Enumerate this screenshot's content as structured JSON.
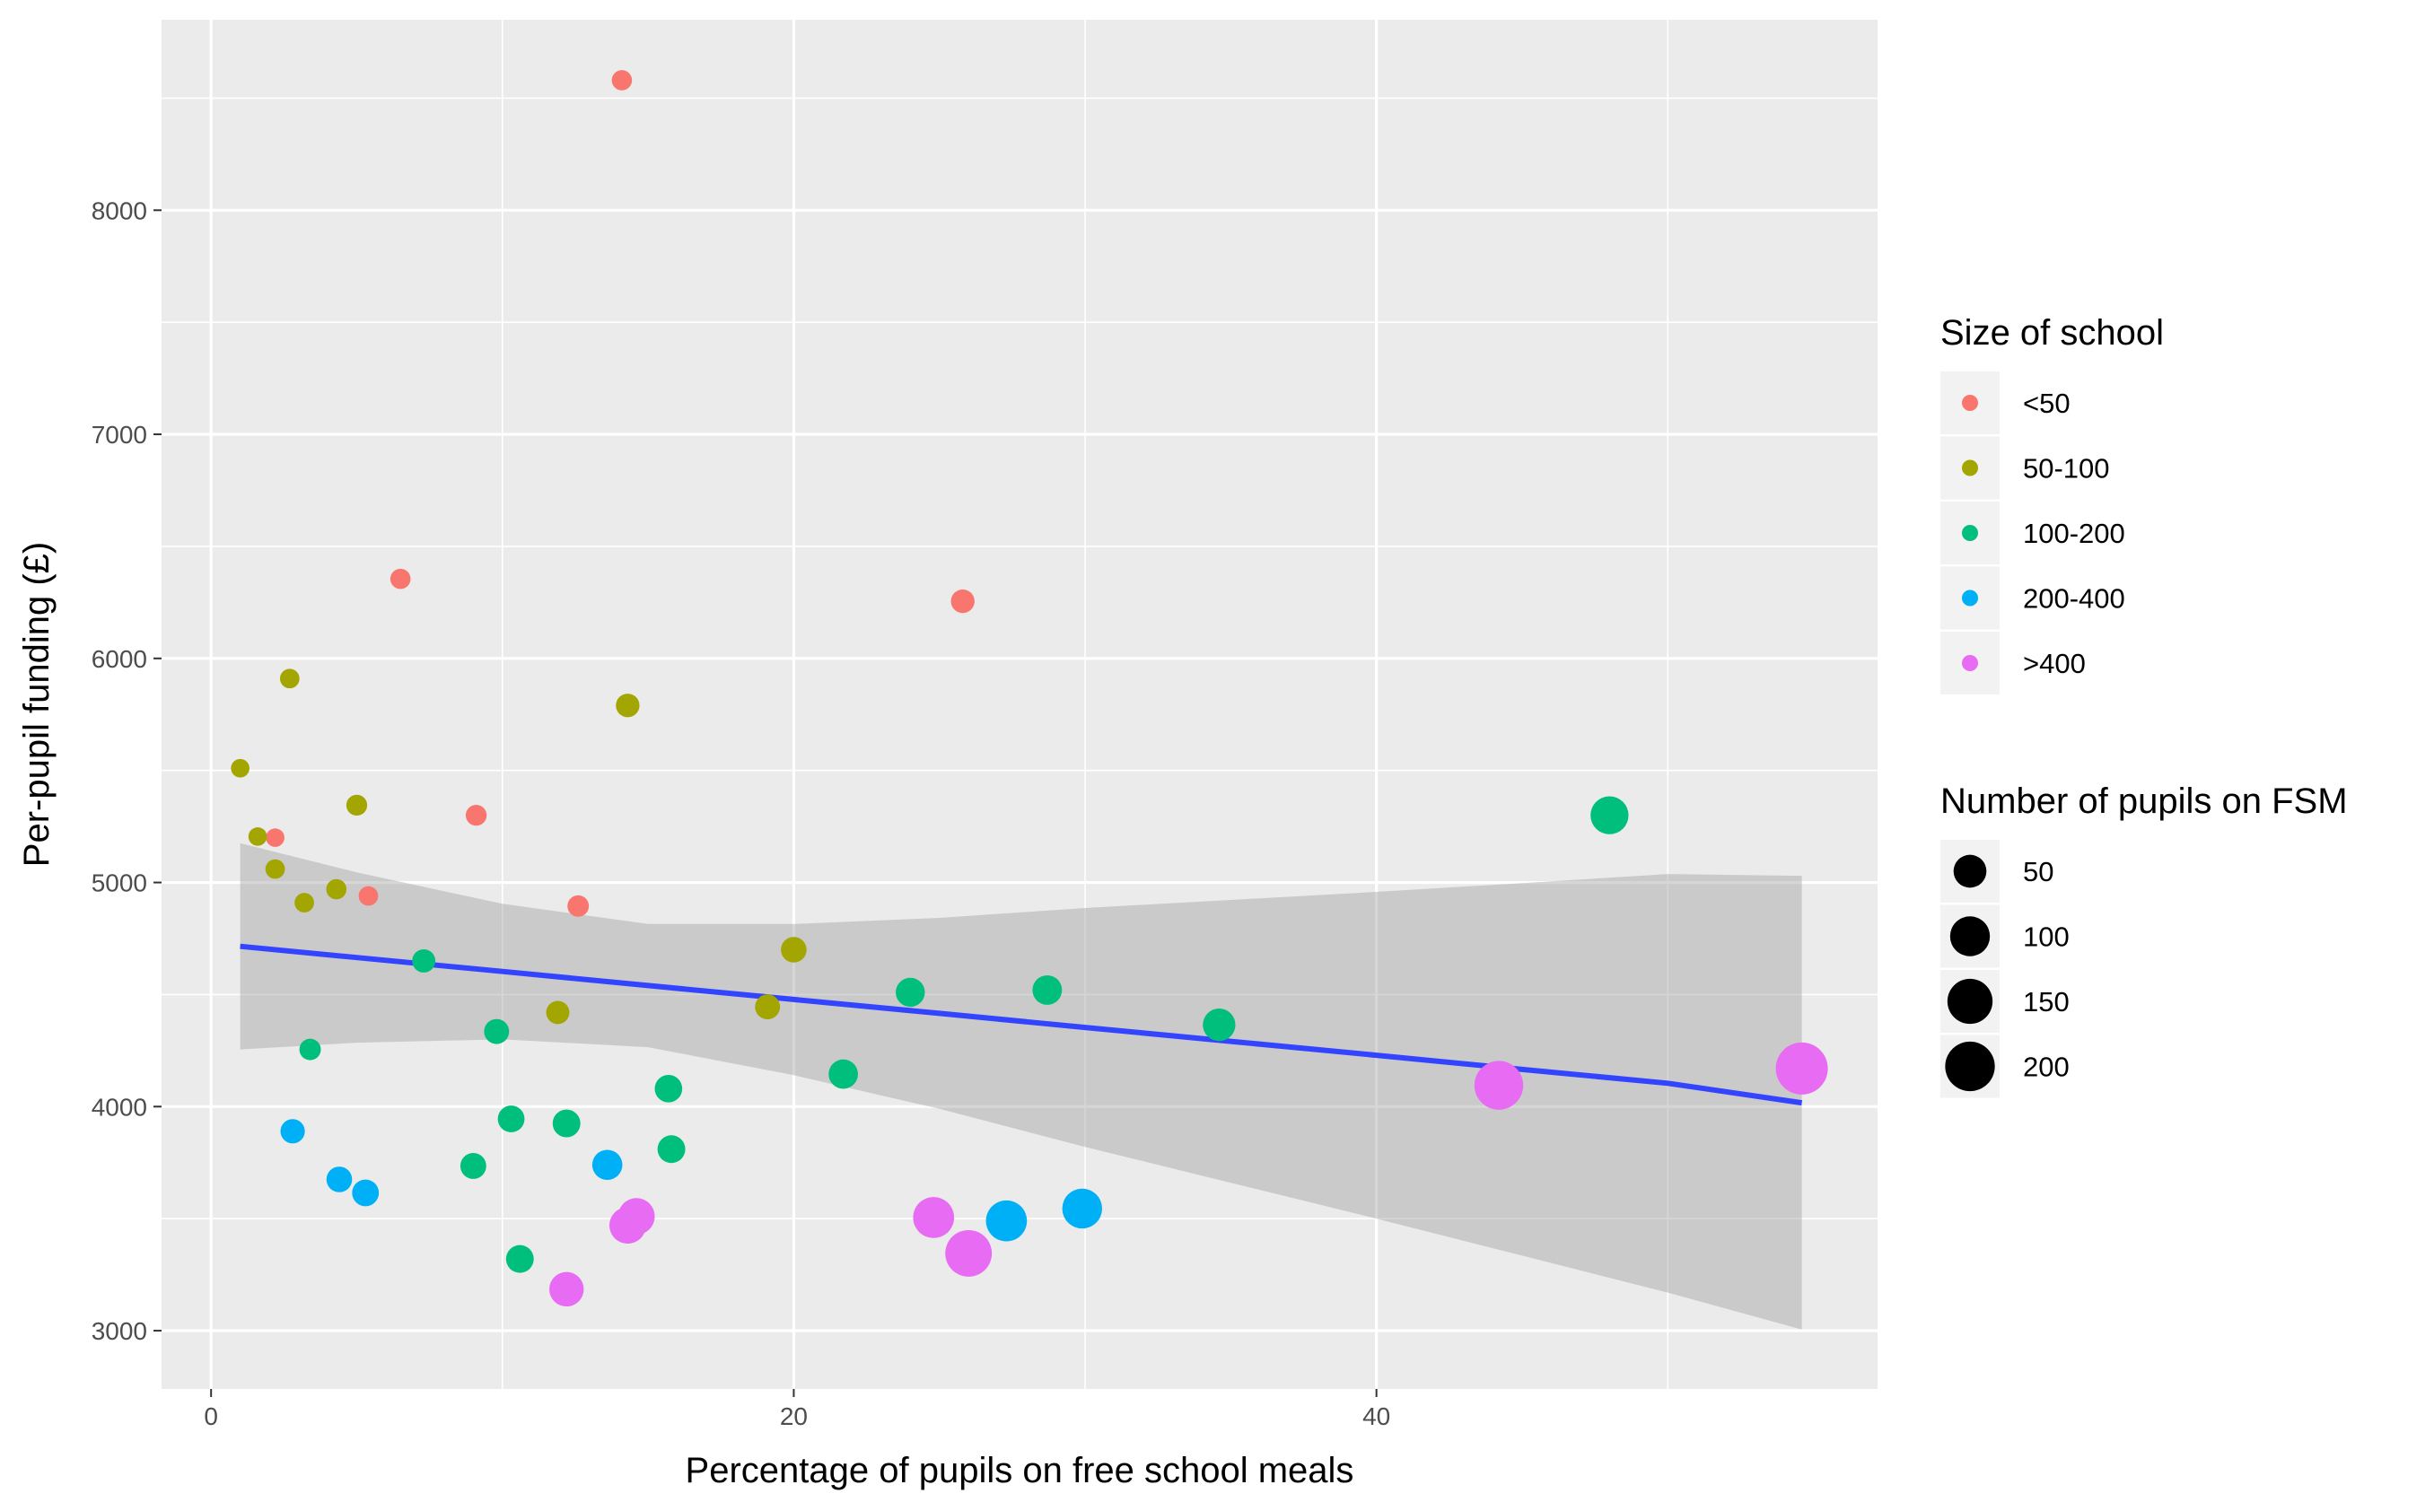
{
  "chart_data": {
    "type": "scatter",
    "xlabel": "Percentage of pupils on free school meals",
    "ylabel": "Per-pupil funding (£)",
    "xlim": [
      -1.7,
      57.2
    ],
    "ylim": [
      2740,
      8850
    ],
    "x_ticks": [
      0,
      20,
      40
    ],
    "y_ticks": [
      3000,
      4000,
      5000,
      6000,
      7000,
      8000
    ],
    "grid": true,
    "legend_position": "right",
    "colour_legend": {
      "title": "Size of school",
      "entries": [
        {
          "label": "<50",
          "color": "#F8766D"
        },
        {
          "label": "50-100",
          "color": "#A3A500"
        },
        {
          "label": "100-200",
          "color": "#00BF7D"
        },
        {
          "label": "200-400",
          "color": "#00B0F6"
        },
        {
          "label": ">400",
          "color": "#E76BF3"
        }
      ]
    },
    "size_legend": {
      "title": "Number of pupils on FSM",
      "entries": [
        {
          "label": "50",
          "value": 50
        },
        {
          "label": "100",
          "value": 100
        },
        {
          "label": "150",
          "value": 150
        },
        {
          "label": "200",
          "value": 200
        }
      ]
    },
    "points": [
      {
        "x": 14.1,
        "y": 8580,
        "group": "<50",
        "fsm": 3
      },
      {
        "x": 25.8,
        "y": 6255,
        "group": "<50",
        "fsm": 10
      },
      {
        "x": 6.5,
        "y": 6355,
        "group": "<50",
        "fsm": 3
      },
      {
        "x": 9.1,
        "y": 5300,
        "group": "<50",
        "fsm": 4
      },
      {
        "x": 2.2,
        "y": 5200,
        "group": "<50",
        "fsm": 1
      },
      {
        "x": 5.4,
        "y": 4940,
        "group": "<50",
        "fsm": 2
      },
      {
        "x": 12.6,
        "y": 4895,
        "group": "<50",
        "fsm": 5
      },
      {
        "x": 2.7,
        "y": 5910,
        "group": "50-100",
        "fsm": 2
      },
      {
        "x": 14.3,
        "y": 5790,
        "group": "50-100",
        "fsm": 10
      },
      {
        "x": 1.0,
        "y": 5510,
        "group": "50-100",
        "fsm": 1
      },
      {
        "x": 5.0,
        "y": 5345,
        "group": "50-100",
        "fsm": 4
      },
      {
        "x": 1.6,
        "y": 5205,
        "group": "50-100",
        "fsm": 1
      },
      {
        "x": 2.2,
        "y": 5060,
        "group": "50-100",
        "fsm": 2
      },
      {
        "x": 4.3,
        "y": 4970,
        "group": "50-100",
        "fsm": 3
      },
      {
        "x": 3.2,
        "y": 4910,
        "group": "50-100",
        "fsm": 2
      },
      {
        "x": 20.0,
        "y": 4700,
        "group": "50-100",
        "fsm": 16
      },
      {
        "x": 11.9,
        "y": 4420,
        "group": "50-100",
        "fsm": 9
      },
      {
        "x": 19.1,
        "y": 4445,
        "group": "50-100",
        "fsm": 14
      },
      {
        "x": 7.3,
        "y": 4650,
        "group": "100-200",
        "fsm": 9
      },
      {
        "x": 9.8,
        "y": 4335,
        "group": "100-200",
        "fsm": 14
      },
      {
        "x": 3.4,
        "y": 4255,
        "group": "100-200",
        "fsm": 5
      },
      {
        "x": 24.0,
        "y": 4510,
        "group": "100-200",
        "fsm": 30
      },
      {
        "x": 28.7,
        "y": 4520,
        "group": "100-200",
        "fsm": 32
      },
      {
        "x": 34.6,
        "y": 4365,
        "group": "100-200",
        "fsm": 48
      },
      {
        "x": 21.7,
        "y": 4145,
        "group": "100-200",
        "fsm": 31
      },
      {
        "x": 15.7,
        "y": 4080,
        "group": "100-200",
        "fsm": 23
      },
      {
        "x": 10.3,
        "y": 3945,
        "group": "100-200",
        "fsm": 20
      },
      {
        "x": 12.2,
        "y": 3925,
        "group": "100-200",
        "fsm": 24
      },
      {
        "x": 15.8,
        "y": 3810,
        "group": "100-200",
        "fsm": 24
      },
      {
        "x": 9.0,
        "y": 3735,
        "group": "100-200",
        "fsm": 17
      },
      {
        "x": 10.6,
        "y": 3320,
        "group": "100-200",
        "fsm": 24
      },
      {
        "x": 48.0,
        "y": 5300,
        "group": "100-200",
        "fsm": 85
      },
      {
        "x": 2.8,
        "y": 3890,
        "group": "200-400",
        "fsm": 12
      },
      {
        "x": 13.6,
        "y": 3740,
        "group": "200-400",
        "fsm": 35
      },
      {
        "x": 4.4,
        "y": 3675,
        "group": "200-400",
        "fsm": 16
      },
      {
        "x": 5.3,
        "y": 3615,
        "group": "200-400",
        "fsm": 20
      },
      {
        "x": 27.3,
        "y": 3490,
        "group": "200-400",
        "fsm": 110
      },
      {
        "x": 29.9,
        "y": 3545,
        "group": "200-400",
        "fsm": 100
      },
      {
        "x": 12.2,
        "y": 3185,
        "group": ">400",
        "fsm": 60
      },
      {
        "x": 14.6,
        "y": 3510,
        "group": ">400",
        "fsm": 75
      },
      {
        "x": 14.3,
        "y": 3470,
        "group": ">400",
        "fsm": 75
      },
      {
        "x": 24.8,
        "y": 3505,
        "group": ">400",
        "fsm": 110
      },
      {
        "x": 26.0,
        "y": 3345,
        "group": ">400",
        "fsm": 165
      },
      {
        "x": 44.2,
        "y": 4095,
        "group": ">400",
        "fsm": 190
      },
      {
        "x": 54.6,
        "y": 4170,
        "group": ">400",
        "fsm": 230
      }
    ],
    "trend": {
      "method": "linear",
      "color": "#3344FF",
      "ribbon_color": "#999999",
      "x": [
        1.0,
        5.0,
        10.0,
        15.0,
        20.0,
        25.0,
        30.0,
        35.0,
        40.0,
        45.0,
        50.0,
        54.6
      ],
      "y": [
        4715,
        4665,
        4603,
        4540,
        4478,
        4416,
        4353,
        4291,
        4229,
        4166,
        4104,
        4017
      ],
      "lower": [
        4255,
        4285,
        4300,
        4265,
        4140,
        3990,
        3820,
        3660,
        3500,
        3335,
        3170,
        3005
      ],
      "upper": [
        5175,
        5045,
        4905,
        4815,
        4815,
        4842,
        4886,
        4922,
        4958,
        4997,
        5038,
        5030
      ]
    }
  }
}
